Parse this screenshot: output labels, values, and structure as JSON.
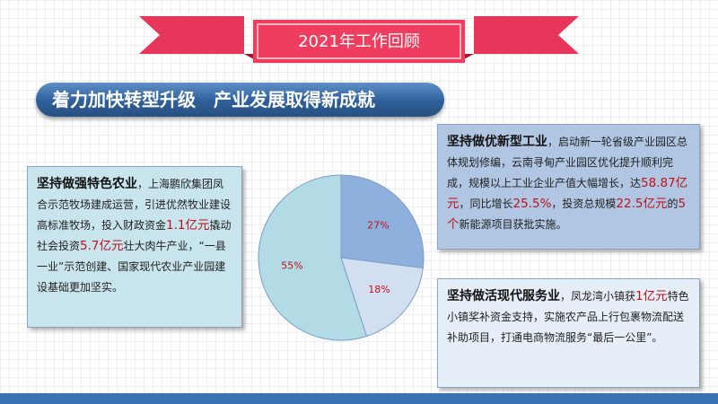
{
  "title": "2021年工作回顾",
  "banner": "着力加快转型升级　产业发展取得新成就",
  "agriculture": {
    "heading": "坚持做强特色农业",
    "t1": "，上海鹏欣集团凤合示范牧场建成运营，引进优然牧业建设高标准牧场，投入财政资金",
    "v1": "1.1亿元",
    "t2": "撬动社会投资",
    "v2": "5.7亿元",
    "t3": "壮大肉牛产业，“一县一业”示范创建、国家现代农业产业园建设基础更加坚实。"
  },
  "industry": {
    "heading": "坚持做优新型工业",
    "t1": "，启动新一轮省级产业园区总体规划修编，云南寻甸产业园区优化提升顺利完成，规模以上工业企业产值大幅增长，达",
    "v1": "58.87亿元",
    "t2": "，同比增长",
    "v2": "25.5%",
    "t3": "，投资总规模",
    "v3": "22.5亿元",
    "t4": "的",
    "v4": "5个",
    "t5": "新能源项目获批实施。"
  },
  "services": {
    "heading": "坚持做活现代服务业",
    "t1": "，凤龙湾小镇获",
    "v1": "1亿元",
    "t2": "特色小镇奖补资金支持，实施农产品上行包裹物流配送补助项目，打通电商物流服务“最后一公里”。"
  },
  "chart_data": {
    "type": "pie",
    "labels": [
      "27%",
      "18%",
      "55%"
    ],
    "values": [
      27,
      18,
      55
    ],
    "colors": [
      "#8db0dd",
      "#d2dff0",
      "#b3dbe6"
    ],
    "label_color": "#c0101a"
  },
  "colors": {
    "ribbon": "#ef3d5f",
    "ribbon_dark": "#a3142f",
    "banner": "#2f5f9a",
    "bottom_bar": "#3b72b4",
    "highlight": "#c0101a"
  }
}
